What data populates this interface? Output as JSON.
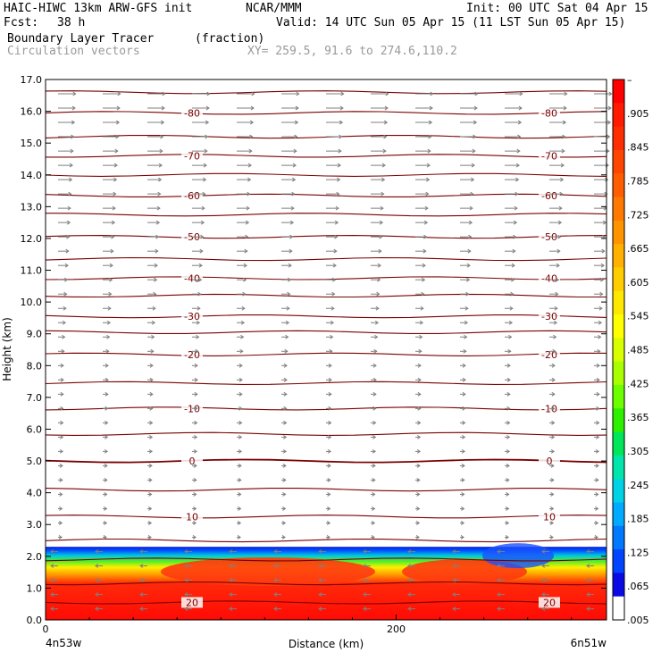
{
  "header": {
    "model": "HAIC-HIWC 13km ARW-GFS init",
    "org": "NCAR/MMM",
    "init": "Init: 00 UTC Sat 04 Apr 15",
    "fcst_label": "Fcst:",
    "fcst_value": "38 h",
    "valid": "Valid: 14 UTC Sun 05 Apr 15 (11 LST Sun 05 Apr 15)",
    "field": "Boundary Layer Tracer",
    "units": "(fraction)",
    "vectors": "Circulation vectors",
    "xy": "XY= 259.5, 91.6 to 274.6,110.2"
  },
  "colors": {
    "contour": "#7a0000",
    "vector": "#7f7f7f",
    "field_high": "#ff1a0a",
    "field_low": "#0a28ff"
  },
  "chart_data": {
    "type": "heatmap",
    "xlabel": "Distance (km)",
    "ylabel": "Height (km)",
    "xlim": [
      0,
      320
    ],
    "ylim": [
      0,
      17
    ],
    "x_ticks": [
      {
        "value": 0,
        "label": "0"
      },
      {
        "value": 200,
        "label": "200"
      }
    ],
    "x_end_labels": [
      "4n53w",
      "6n51w"
    ],
    "y_ticks": [
      "0.0",
      "1.0",
      "2.0",
      "3.0",
      "4.0",
      "5.0",
      "6.0",
      "7.0",
      "8.0",
      "9.0",
      "10.0",
      "11.0",
      "12.0",
      "13.0",
      "14.0",
      "15.0",
      "16.0",
      "17.0"
    ],
    "colorbar": {
      "labels": [
        "–",
        ".905",
        ".845",
        ".785",
        ".725",
        ".665",
        ".605",
        ".545",
        ".485",
        ".425",
        ".365",
        ".305",
        ".245",
        ".185",
        ".125",
        ".065",
        ".005"
      ],
      "colors": [
        "#ff0000",
        "#ff1a00",
        "#ff2e00",
        "#ff4600",
        "#ff5e00",
        "#ff7800",
        "#ff9400",
        "#ffb000",
        "#ffcc00",
        "#ffe800",
        "#ffff00",
        "#d8ff00",
        "#a8ff00",
        "#6cff00",
        "#2cf000",
        "#00e65a",
        "#00e6aa",
        "#00d2e6",
        "#00aaff",
        "#0078ff",
        "#0044ff",
        "#0a0ae6",
        "#ffffff"
      ]
    },
    "isotherms": [
      {
        "height": 0.55,
        "label": "20"
      },
      {
        "height": 1.15,
        "label": ""
      },
      {
        "height": 1.9,
        "label": ""
      },
      {
        "height": 2.5,
        "label": ""
      },
      {
        "height": 3.25,
        "label": "10"
      },
      {
        "height": 4.1,
        "label": ""
      },
      {
        "height": 5.0,
        "label": "0"
      },
      {
        "height": 5.85,
        "label": ""
      },
      {
        "height": 6.65,
        "label": "-10"
      },
      {
        "height": 7.45,
        "label": ""
      },
      {
        "height": 8.35,
        "label": "-20"
      },
      {
        "height": 9.05,
        "label": ""
      },
      {
        "height": 9.55,
        "label": "-30"
      },
      {
        "height": 10.2,
        "label": ""
      },
      {
        "height": 10.75,
        "label": "-40"
      },
      {
        "height": 11.35,
        "label": ""
      },
      {
        "height": 12.05,
        "label": "-50"
      },
      {
        "height": 12.75,
        "label": ""
      },
      {
        "height": 13.35,
        "label": "-60"
      },
      {
        "height": 14.0,
        "label": ""
      },
      {
        "height": 14.6,
        "label": "-70"
      },
      {
        "height": 15.2,
        "label": ""
      },
      {
        "height": 15.95,
        "label": "-80"
      },
      {
        "height": 16.6,
        "label": ""
      }
    ],
    "boundary_layer_top_km": 2.3
  }
}
